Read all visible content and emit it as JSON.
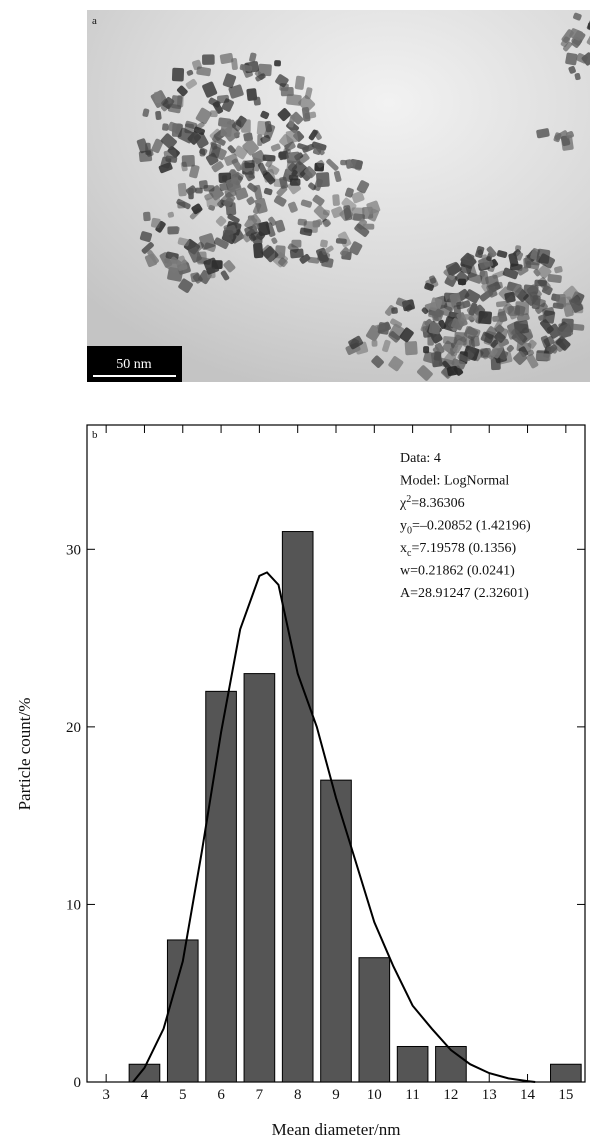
{
  "image_panel": {
    "label": "a",
    "scale_bar": "50 nm"
  },
  "chart_data": {
    "type": "bar",
    "panel_label": "b",
    "x_label": "Mean diameter/nm",
    "y_label": "Particle count/%",
    "x": [
      4,
      5,
      6,
      7,
      8,
      9,
      10,
      11,
      12,
      15
    ],
    "values": [
      1,
      8,
      22,
      23,
      31,
      17,
      7,
      2,
      2,
      1
    ],
    "color": "#555555",
    "xlim": [
      2.5,
      15.5
    ],
    "xticks": [
      3,
      4,
      5,
      6,
      7,
      8,
      9,
      10,
      11,
      12,
      13,
      14,
      15
    ],
    "ylim": [
      0,
      37
    ],
    "yticks": [
      0,
      10,
      20,
      30
    ],
    "curve": {
      "color": "#000000",
      "x": [
        3.7,
        4,
        4.5,
        5,
        5.5,
        6,
        6.5,
        7,
        7.2,
        7.5,
        8,
        8.5,
        9,
        9.5,
        10,
        10.5,
        11,
        11.5,
        12,
        12.5,
        13,
        13.5,
        14,
        14.2
      ],
      "values": [
        0,
        0.8,
        3,
        6.8,
        13,
        19.7,
        25.5,
        28.5,
        28.7,
        28,
        23,
        20,
        16,
        12.5,
        9,
        6.5,
        4.3,
        3,
        1.8,
        1,
        0.5,
        0.2,
        0.05,
        0
      ]
    },
    "annotation": [
      [
        {
          "t": "Data: 4"
        }
      ],
      [
        {
          "t": "Model: LogNormal"
        }
      ],
      [
        {
          "t": "χ"
        },
        {
          "sup": "2"
        },
        {
          "t": "=8.36306"
        }
      ],
      [
        {
          "t": "y"
        },
        {
          "sub": "0"
        },
        {
          "t": "=–0.20852 (1.42196)"
        }
      ],
      [
        {
          "t": "x"
        },
        {
          "sub": "c"
        },
        {
          "t": "=7.19578 (0.1356)"
        }
      ],
      [
        {
          "t": "w=0.21862 (0.0241)"
        }
      ],
      [
        {
          "t": "A=28.91247 (2.32601)"
        }
      ]
    ]
  }
}
